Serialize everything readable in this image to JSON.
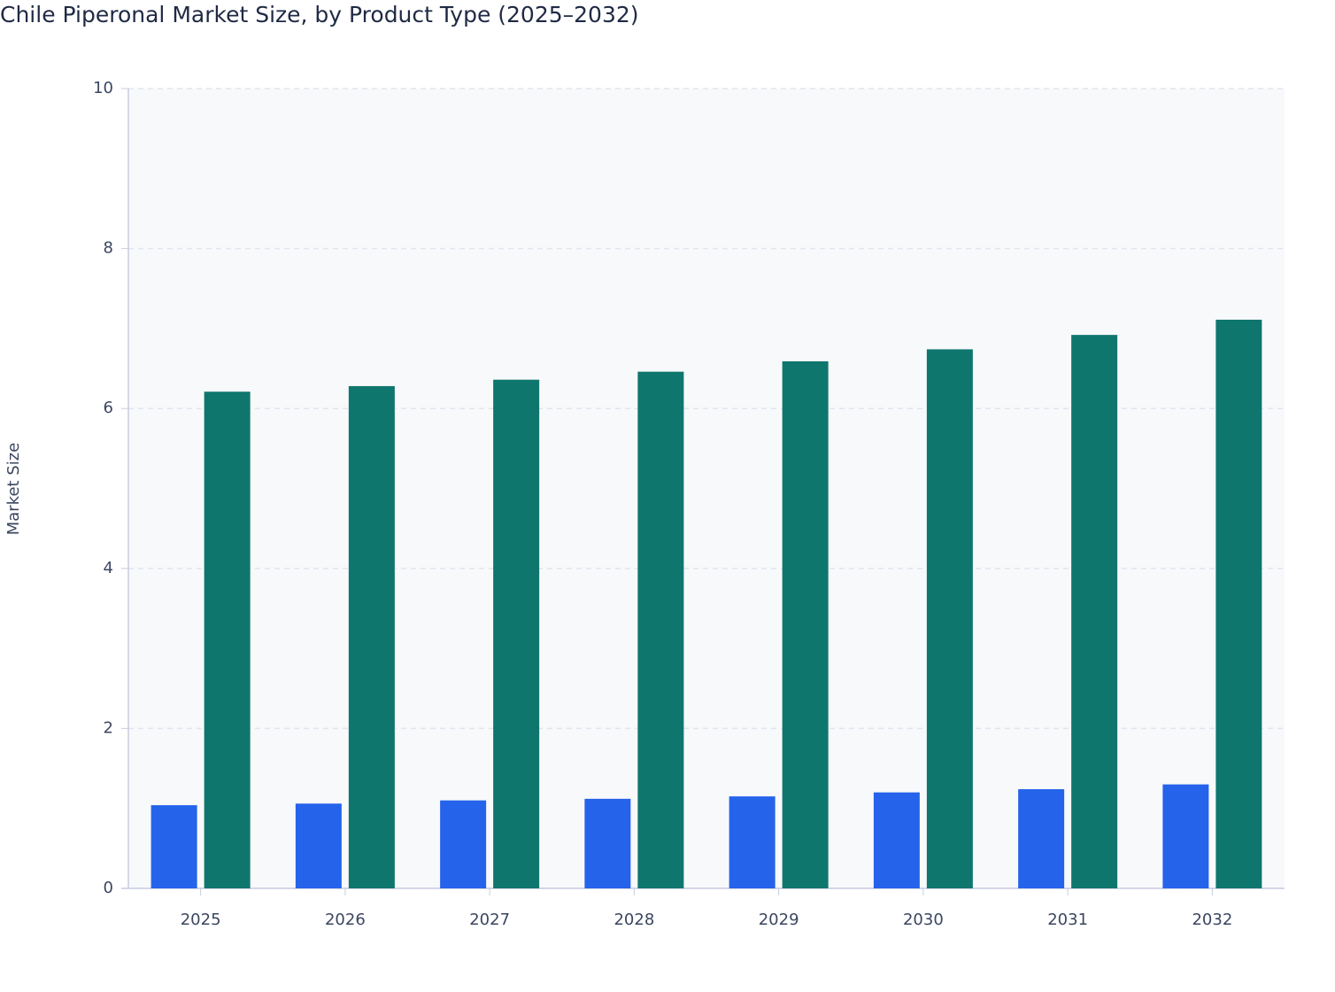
{
  "chart_data": {
    "type": "bar",
    "title": "Chile Piperonal Market Size, by Product Type (2025–2032)",
    "y_label": "Market Size",
    "categories": [
      "2025",
      "2026",
      "2027",
      "2028",
      "2029",
      "2030",
      "2031",
      "2032"
    ],
    "series": [
      {
        "color": "#2563eb",
        "values": [
          1.04,
          1.06,
          1.1,
          1.12,
          1.15,
          1.2,
          1.24,
          1.3
        ]
      },
      {
        "color": "#0f766e",
        "values": [
          6.21,
          6.28,
          6.36,
          6.46,
          6.59,
          6.74,
          6.92,
          7.11
        ]
      }
    ],
    "ylim": [
      0,
      10
    ],
    "yticks": [
      0,
      2,
      4,
      6,
      8,
      10
    ],
    "grid": true
  }
}
